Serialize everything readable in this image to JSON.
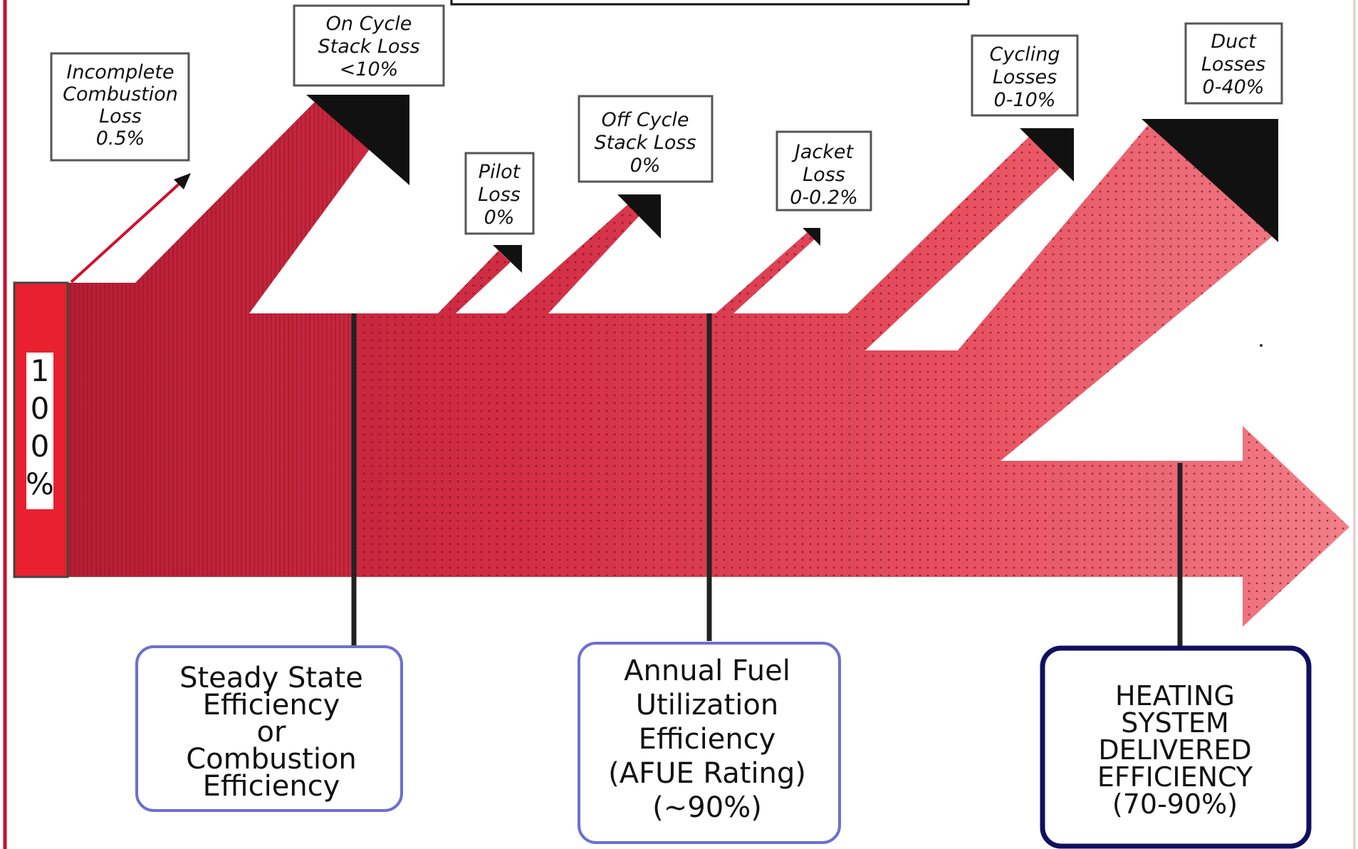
{
  "diagram": {
    "input": {
      "label_chars": [
        "1",
        "0",
        "0",
        "%"
      ]
    },
    "losses": [
      {
        "id": "incomplete",
        "lines": [
          "Incomplete",
          "Combustion",
          "Loss",
          "0.5%"
        ]
      },
      {
        "id": "on-cycle",
        "lines": [
          "On Cycle",
          "Stack Loss",
          "<10%"
        ]
      },
      {
        "id": "pilot",
        "lines": [
          "Pilot",
          "Loss",
          "0%"
        ]
      },
      {
        "id": "off-cycle",
        "lines": [
          "Off Cycle",
          "Stack Loss",
          "0%"
        ]
      },
      {
        "id": "jacket",
        "lines": [
          "Jacket",
          "Loss",
          "0-0.2%"
        ]
      },
      {
        "id": "cycling",
        "lines": [
          "Cycling",
          "Losses",
          "0-10%"
        ]
      },
      {
        "id": "duct",
        "lines": [
          "Duct",
          "Losses",
          "0-40%"
        ]
      }
    ],
    "efficiencies": [
      {
        "id": "steady-state",
        "lines": [
          "Steady State",
          "Efficiency",
          "or",
          "Combustion",
          "Efficiency"
        ]
      },
      {
        "id": "afue",
        "lines": [
          "Annual Fuel",
          "Utilization",
          "Efficiency",
          "(AFUE Rating)",
          "(~90%)"
        ]
      },
      {
        "id": "delivered",
        "lines": [
          "HEATING",
          "SYSTEM",
          "DELIVERED",
          "EFFICIENCY",
          "(70-90%)"
        ]
      }
    ],
    "colors": {
      "dark_red": "#b81e34",
      "mid_red": "#d7374c",
      "light_red": "#ef6f7c",
      "input_block": "#e8202f",
      "box_border_blue": "#6d6fd0",
      "box_border_navy": "#101060",
      "frame_red": "#c8102e"
    }
  }
}
